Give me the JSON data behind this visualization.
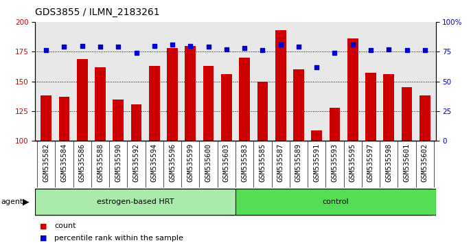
{
  "title": "GDS3855 / ILMN_2183261",
  "samples": [
    "GSM535582",
    "GSM535584",
    "GSM535586",
    "GSM535588",
    "GSM535590",
    "GSM535592",
    "GSM535594",
    "GSM535596",
    "GSM535599",
    "GSM535600",
    "GSM535603",
    "GSM535583",
    "GSM535585",
    "GSM535587",
    "GSM535589",
    "GSM535591",
    "GSM535593",
    "GSM535595",
    "GSM535597",
    "GSM535598",
    "GSM535601",
    "GSM535602"
  ],
  "counts": [
    138,
    137,
    169,
    162,
    135,
    131,
    163,
    178,
    180,
    163,
    156,
    170,
    150,
    193,
    160,
    109,
    128,
    186,
    157,
    156,
    145,
    138
  ],
  "percentiles": [
    76,
    79,
    80,
    79,
    79,
    74,
    80,
    81,
    80,
    79,
    77,
    78,
    76,
    81,
    79,
    62,
    74,
    81,
    76,
    77,
    76,
    76
  ],
  "group_split": 11,
  "ylim_left": [
    100,
    200
  ],
  "ylim_right": [
    0,
    100
  ],
  "yticks_left": [
    100,
    125,
    150,
    175,
    200
  ],
  "yticks_right": [
    0,
    25,
    50,
    75,
    100
  ],
  "ytick_labels_right": [
    "0",
    "25",
    "50",
    "75",
    "100%"
  ],
  "bar_color": "#cc0000",
  "dot_color": "#0000cc",
  "group_color_1": "#aaeaaa",
  "group_color_2": "#55dd55",
  "tick_bg_color": "#cccccc",
  "plot_bg_color": "#e8e8e8",
  "agent_label": "agent",
  "label_estrogen": "estrogen-based HRT",
  "label_control": "control",
  "legend_count": "count",
  "legend_pct": "percentile rank within the sample",
  "title_fontsize": 10,
  "axis_fontsize": 7.5,
  "label_fontsize": 8
}
